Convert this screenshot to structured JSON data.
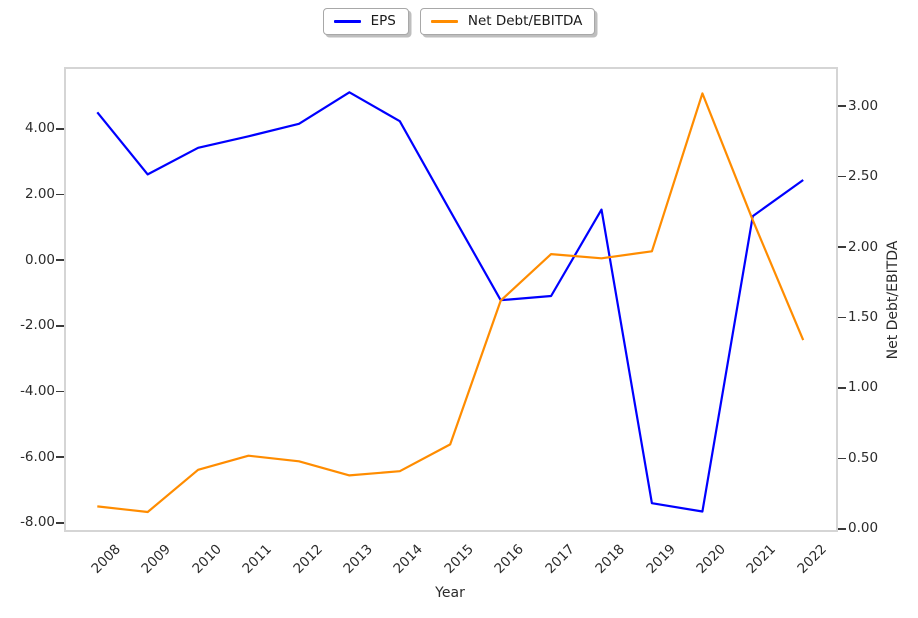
{
  "legend": {
    "items": [
      {
        "label": "EPS",
        "swatch": "eps-line"
      },
      {
        "label": "Net Debt/EBITDA",
        "swatch": "net-debt-ebitda-line"
      }
    ]
  },
  "axes": {
    "x": {
      "label": "Year"
    },
    "right": {
      "label": "Net Debt/EBITDA"
    }
  },
  "chart_data": {
    "type": "line",
    "title": "",
    "xlabel": "Year",
    "grid": false,
    "legend_position": "upper center, outside plot area, two separate fancy boxes with shadow",
    "x": [
      2008,
      2009,
      2010,
      2011,
      2012,
      2013,
      2014,
      2015,
      2016,
      2017,
      2018,
      2019,
      2020,
      2021,
      2022
    ],
    "x_tick_labels": [
      "2008",
      "2009",
      "2010",
      "2011",
      "2012",
      "2013",
      "2014",
      "2015",
      "2016",
      "2017",
      "2018",
      "2019",
      "2020",
      "2021",
      "2022"
    ],
    "x_range": [
      2007.36,
      2022.67
    ],
    "series": [
      {
        "name": "EPS",
        "axis": "left",
        "color": "#0000ff",
        "values": [
          4.5,
          2.61,
          3.42,
          3.77,
          4.15,
          5.11,
          4.23,
          1.5,
          -1.22,
          -1.09,
          1.54,
          -7.4,
          -7.65,
          1.34,
          2.44
        ]
      },
      {
        "name": "Net Debt/EBITDA",
        "axis": "right",
        "color": "#ff8c00",
        "values": [
          0.16,
          0.12,
          0.42,
          0.52,
          0.48,
          0.38,
          0.41,
          0.6,
          1.62,
          1.95,
          1.92,
          1.97,
          3.09,
          2.19,
          1.34
        ]
      }
    ],
    "left_axis": {
      "label": "",
      "range": [
        -8.26,
        5.85
      ],
      "tick_values": [
        4,
        2,
        0,
        -2,
        -4,
        -6,
        -8
      ],
      "tick_labels": [
        "4.00",
        "2.00",
        "0.00",
        "-2.00",
        "-4.00",
        "-6.00",
        "-8.00"
      ]
    },
    "right_axis": {
      "label": "Net Debt/EBITDA",
      "range": [
        -0.018,
        3.27
      ],
      "tick_values": [
        3.0,
        2.5,
        2.0,
        1.5,
        1.0,
        0.5,
        0.0
      ],
      "tick_labels": [
        "3.00",
        "2.50",
        "2.00",
        "1.50",
        "1.00",
        "0.50",
        "0.00"
      ]
    }
  }
}
